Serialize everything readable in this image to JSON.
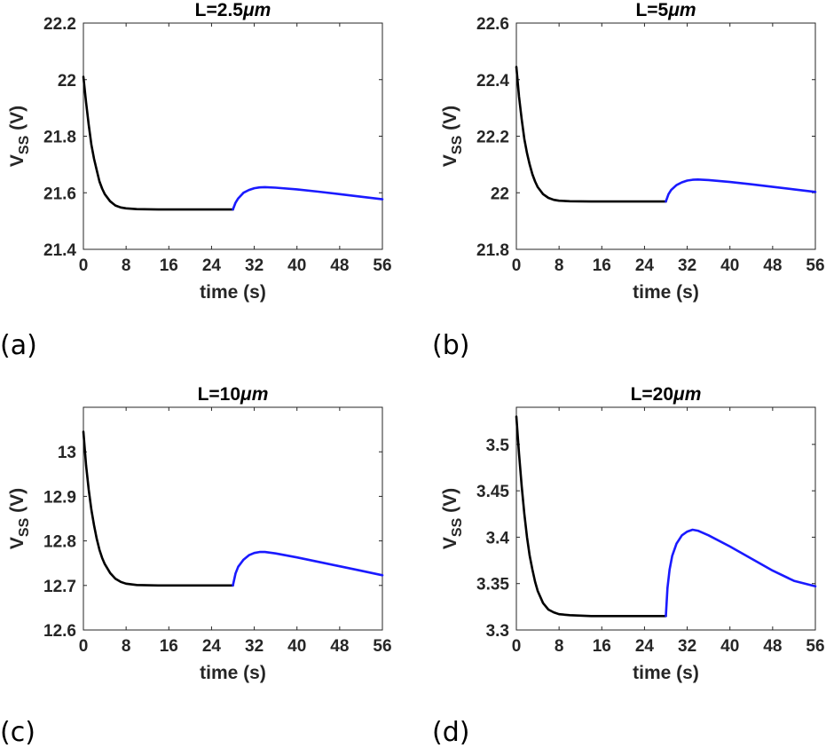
{
  "chart_data": [
    {
      "type": "line",
      "label": "(a)",
      "title": "L=2.5",
      "title_unit": "μm",
      "xlabel": "time (s)",
      "ylabel_main": "V",
      "ylabel_sub": "SS",
      "ylabel_unit": "(V)",
      "xlim": [
        0,
        56
      ],
      "ylim": [
        21.4,
        22.2
      ],
      "xticks": [
        0,
        8,
        16,
        24,
        32,
        40,
        48,
        56
      ],
      "yticks": [
        21.4,
        21.6,
        21.8,
        22,
        22.2
      ],
      "ytick_labels": [
        "21.4",
        "21.6",
        "21.8",
        "22",
        "22.2"
      ],
      "series": [
        {
          "color": "#000000",
          "points": [
            [
              0,
              22.01
            ],
            [
              0.5,
              21.92
            ],
            [
              1,
              21.84
            ],
            [
              1.5,
              21.77
            ],
            [
              2,
              21.72
            ],
            [
              2.5,
              21.68
            ],
            [
              3,
              21.64
            ],
            [
              3.5,
              21.615
            ],
            [
              4,
              21.595
            ],
            [
              5,
              21.57
            ],
            [
              6,
              21.555
            ],
            [
              7,
              21.548
            ],
            [
              8,
              21.545
            ],
            [
              10,
              21.542
            ],
            [
              14,
              21.541
            ],
            [
              20,
              21.541
            ],
            [
              28,
              21.541
            ]
          ]
        },
        {
          "color": "#1a1aff",
          "points": [
            [
              28,
              21.541
            ],
            [
              28.5,
              21.565
            ],
            [
              29,
              21.58
            ],
            [
              30,
              21.6
            ],
            [
              31,
              21.61
            ],
            [
              32,
              21.616
            ],
            [
              33,
              21.619
            ],
            [
              34,
              21.62
            ],
            [
              36,
              21.618
            ],
            [
              40,
              21.612
            ],
            [
              44,
              21.604
            ],
            [
              48,
              21.595
            ],
            [
              52,
              21.586
            ],
            [
              56,
              21.577
            ]
          ]
        }
      ]
    },
    {
      "type": "line",
      "label": "(b)",
      "title": "L=5",
      "title_unit": "μm",
      "xlabel": "time (s)",
      "ylabel_main": "V",
      "ylabel_sub": "SS",
      "ylabel_unit": "(V)",
      "xlim": [
        0,
        56
      ],
      "ylim": [
        21.8,
        22.6
      ],
      "xticks": [
        0,
        8,
        16,
        24,
        32,
        40,
        48,
        56
      ],
      "yticks": [
        21.8,
        22,
        22.2,
        22.4,
        22.6
      ],
      "ytick_labels": [
        "21.8",
        "22",
        "22.2",
        "22.4",
        "22.6"
      ],
      "series": [
        {
          "color": "#000000",
          "points": [
            [
              0,
              22.445
            ],
            [
              0.5,
              22.34
            ],
            [
              1,
              22.26
            ],
            [
              1.5,
              22.19
            ],
            [
              2,
              22.14
            ],
            [
              2.5,
              22.1
            ],
            [
              3,
              22.065
            ],
            [
              3.5,
              22.04
            ],
            [
              4,
              22.02
            ],
            [
              5,
              21.995
            ],
            [
              6,
              21.982
            ],
            [
              7,
              21.975
            ],
            [
              8,
              21.972
            ],
            [
              10,
              21.97
            ],
            [
              14,
              21.969
            ],
            [
              20,
              21.969
            ],
            [
              28,
              21.969
            ]
          ]
        },
        {
          "color": "#1a1aff",
          "points": [
            [
              28,
              21.969
            ],
            [
              28.5,
              21.995
            ],
            [
              29,
              22.01
            ],
            [
              30,
              22.027
            ],
            [
              31,
              22.037
            ],
            [
              32,
              22.043
            ],
            [
              33,
              22.046
            ],
            [
              34,
              22.047
            ],
            [
              36,
              22.045
            ],
            [
              40,
              22.038
            ],
            [
              44,
              22.03
            ],
            [
              48,
              22.021
            ],
            [
              52,
              22.012
            ],
            [
              56,
              22.003
            ]
          ]
        }
      ]
    },
    {
      "type": "line",
      "label": "(c)",
      "title": "L=10",
      "title_unit": "μm",
      "xlabel": "time (s)",
      "ylabel_main": "V",
      "ylabel_sub": "SS",
      "ylabel_unit": "(V)",
      "xlim": [
        0,
        56
      ],
      "ylim": [
        12.6,
        13.1
      ],
      "xticks": [
        0,
        8,
        16,
        24,
        32,
        40,
        48,
        56
      ],
      "yticks": [
        12.6,
        12.7,
        12.8,
        12.9,
        13
      ],
      "ytick_labels": [
        "12.6",
        "12.7",
        "12.8",
        "12.9",
        "13"
      ],
      "series": [
        {
          "color": "#000000",
          "points": [
            [
              0,
              13.045
            ],
            [
              0.5,
              12.97
            ],
            [
              1,
              12.915
            ],
            [
              1.5,
              12.87
            ],
            [
              2,
              12.835
            ],
            [
              2.5,
              12.805
            ],
            [
              3,
              12.78
            ],
            [
              3.5,
              12.762
            ],
            [
              4,
              12.748
            ],
            [
              5,
              12.728
            ],
            [
              6,
              12.715
            ],
            [
              7,
              12.708
            ],
            [
              8,
              12.704
            ],
            [
              10,
              12.701
            ],
            [
              14,
              12.7
            ],
            [
              20,
              12.7
            ],
            [
              28,
              12.7
            ]
          ]
        },
        {
          "color": "#1a1aff",
          "points": [
            [
              28,
              12.7
            ],
            [
              28.5,
              12.727
            ],
            [
              29,
              12.742
            ],
            [
              30,
              12.758
            ],
            [
              31,
              12.768
            ],
            [
              32,
              12.773
            ],
            [
              33,
              12.775
            ],
            [
              34,
              12.775
            ],
            [
              36,
              12.772
            ],
            [
              40,
              12.763
            ],
            [
              44,
              12.753
            ],
            [
              48,
              12.743
            ],
            [
              52,
              12.733
            ],
            [
              56,
              12.723
            ]
          ]
        }
      ]
    },
    {
      "type": "line",
      "label": "(d)",
      "title": "L=20",
      "title_unit": "μm",
      "xlabel": "time (s)",
      "ylabel_main": "V",
      "ylabel_sub": "SS",
      "ylabel_unit": "(V)",
      "xlim": [
        0,
        56
      ],
      "ylim": [
        3.3,
        3.54
      ],
      "xticks": [
        0,
        8,
        16,
        24,
        32,
        40,
        48,
        56
      ],
      "yticks": [
        3.3,
        3.35,
        3.4,
        3.45,
        3.5
      ],
      "ytick_labels": [
        "3.3",
        "3.35",
        "3.4",
        "3.45",
        "3.5"
      ],
      "series": [
        {
          "color": "#000000",
          "points": [
            [
              0,
              3.53
            ],
            [
              0.5,
              3.49
            ],
            [
              1,
              3.455
            ],
            [
              1.5,
              3.425
            ],
            [
              2,
              3.4
            ],
            [
              2.5,
              3.38
            ],
            [
              3,
              3.365
            ],
            [
              3.5,
              3.352
            ],
            [
              4,
              3.342
            ],
            [
              5,
              3.329
            ],
            [
              6,
              3.322
            ],
            [
              7,
              3.319
            ],
            [
              8,
              3.317
            ],
            [
              10,
              3.316
            ],
            [
              14,
              3.315
            ],
            [
              20,
              3.315
            ],
            [
              28,
              3.315
            ]
          ]
        },
        {
          "color": "#1a1aff",
          "points": [
            [
              28,
              3.315
            ],
            [
              28.3,
              3.345
            ],
            [
              28.7,
              3.365
            ],
            [
              29.2,
              3.38
            ],
            [
              30,
              3.393
            ],
            [
              31,
              3.402
            ],
            [
              32,
              3.406
            ],
            [
              33,
              3.408
            ],
            [
              34,
              3.407
            ],
            [
              36,
              3.402
            ],
            [
              40,
              3.39
            ],
            [
              44,
              3.377
            ],
            [
              48,
              3.364
            ],
            [
              52,
              3.353
            ],
            [
              56,
              3.347
            ]
          ]
        }
      ]
    }
  ]
}
